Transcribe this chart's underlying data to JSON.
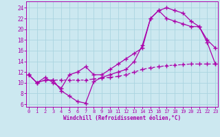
{
  "background_color": "#cce8f0",
  "grid_color": "#aad4e0",
  "line_color": "#aa00aa",
  "xlabel": "Windchill (Refroidissement éolien,°C)",
  "ylabel_ticks": [
    6,
    8,
    10,
    12,
    14,
    16,
    18,
    20,
    22,
    24
  ],
  "xlabel_ticks": [
    0,
    1,
    2,
    3,
    4,
    5,
    6,
    7,
    8,
    9,
    10,
    11,
    12,
    13,
    14,
    15,
    16,
    17,
    18,
    19,
    20,
    21,
    22,
    23
  ],
  "xlim": [
    -0.3,
    23.3
  ],
  "ylim": [
    5.5,
    25.2
  ],
  "curve1_x": [
    0,
    1,
    2,
    3,
    4,
    5,
    6,
    7,
    8,
    9,
    10,
    11,
    12,
    13,
    14,
    15,
    16,
    17,
    18,
    19,
    20,
    21,
    22,
    23
  ],
  "curve1_y": [
    11.5,
    10.0,
    10.5,
    10.5,
    8.5,
    7.5,
    6.5,
    6.2,
    10.2,
    11.0,
    11.5,
    12.0,
    12.5,
    14.0,
    17.0,
    22.0,
    23.5,
    24.0,
    23.5,
    23.0,
    21.5,
    20.5,
    18.0,
    16.5
  ],
  "curve2_x": [
    0,
    1,
    2,
    3,
    4,
    5,
    6,
    7,
    8,
    9,
    10,
    11,
    12,
    13,
    14,
    15,
    16,
    17,
    18,
    19,
    20,
    21,
    22,
    23
  ],
  "curve2_y": [
    11.5,
    10.0,
    11.0,
    10.0,
    9.0,
    11.5,
    12.0,
    13.0,
    11.5,
    11.5,
    12.5,
    13.5,
    14.5,
    15.5,
    16.5,
    22.0,
    23.5,
    22.0,
    21.5,
    21.0,
    20.5,
    20.5,
    17.5,
    13.5
  ],
  "curve3_x": [
    0,
    1,
    2,
    3,
    4,
    5,
    6,
    7,
    8,
    9,
    10,
    11,
    12,
    13,
    14,
    15,
    16,
    17,
    18,
    19,
    20,
    21,
    22,
    23
  ],
  "curve3_y": [
    11.5,
    10.0,
    10.5,
    10.5,
    10.5,
    10.5,
    10.5,
    10.5,
    10.7,
    10.9,
    11.0,
    11.2,
    11.5,
    12.0,
    12.5,
    12.8,
    13.0,
    13.2,
    13.3,
    13.4,
    13.5,
    13.5,
    13.5,
    13.5
  ]
}
